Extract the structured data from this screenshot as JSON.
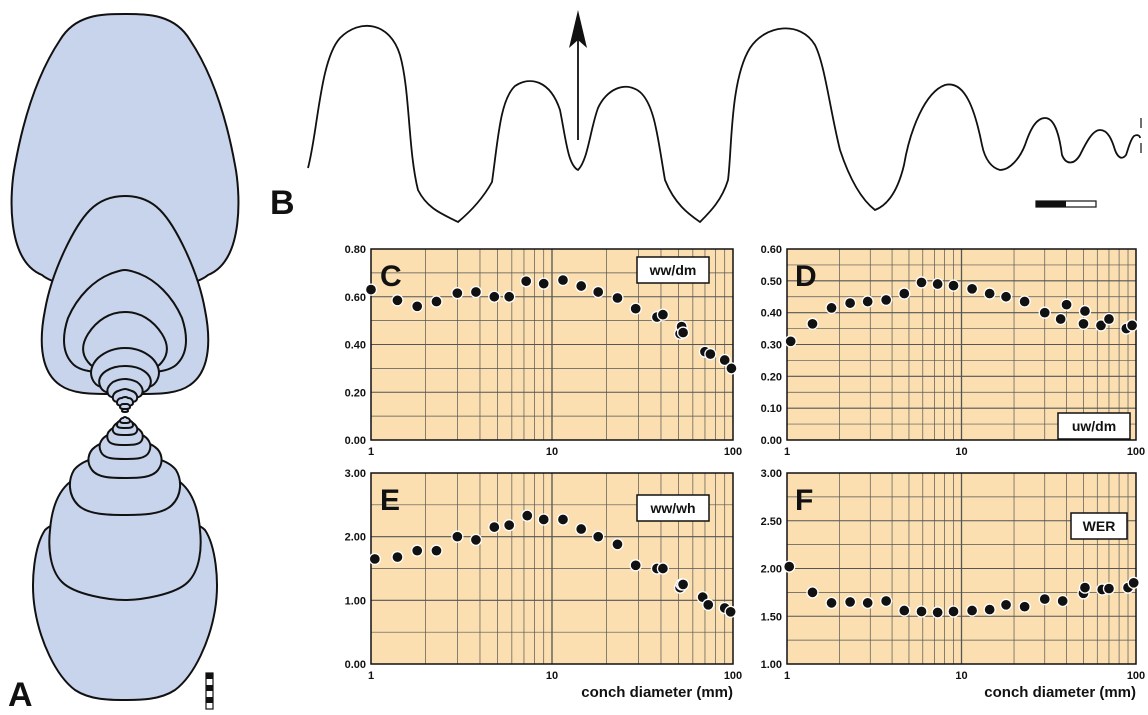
{
  "panel_labels": {
    "a": "A",
    "b": "B"
  },
  "colors": {
    "whorl_fill": "#c8d4ec",
    "plot_bg": "#fbdfb0",
    "grid": "#555555",
    "point": "#111111",
    "ink": "#111111"
  },
  "suture_icon": "suture-line-with-arrow",
  "scale_icon": "scale-bar",
  "chart_data": [
    {
      "id": "C",
      "panel": "C",
      "type": "scatter",
      "ratio": "ww/dm",
      "xlabel": "",
      "xscale": "log",
      "xlim": [
        1,
        100
      ],
      "xticks": [
        "1",
        "10",
        "100"
      ],
      "ylim": [
        0,
        0.8
      ],
      "yticks": [
        "0.00",
        "0.20",
        "0.40",
        "0.60",
        "0.80"
      ],
      "grid": true,
      "x": [
        1,
        1.4,
        1.8,
        2.3,
        3,
        3.8,
        4.8,
        5.8,
        7.2,
        9,
        11.5,
        14.5,
        18,
        23,
        29,
        38,
        41,
        51,
        52,
        53,
        70,
        75,
        90,
        98
      ],
      "y": [
        0.63,
        0.585,
        0.56,
        0.58,
        0.615,
        0.62,
        0.6,
        0.6,
        0.665,
        0.655,
        0.67,
        0.645,
        0.62,
        0.595,
        0.55,
        0.515,
        0.525,
        0.445,
        0.475,
        0.45,
        0.37,
        0.36,
        0.335,
        0.3
      ]
    },
    {
      "id": "D",
      "panel": "D",
      "type": "scatter",
      "ratio": "uw/dm",
      "xlabel": "",
      "xscale": "log",
      "xlim": [
        1,
        100
      ],
      "xticks": [
        "1",
        "10",
        "100"
      ],
      "ylim": [
        0,
        0.6
      ],
      "yticks": [
        "0.00",
        "0.10",
        "0.20",
        "0.30",
        "0.40",
        "0.50",
        "0.60"
      ],
      "grid": true,
      "x": [
        1.05,
        1.4,
        1.8,
        2.3,
        2.9,
        3.7,
        4.7,
        5.9,
        7.3,
        9,
        11.5,
        14.5,
        18,
        23,
        30,
        37,
        40,
        50,
        51,
        63,
        70,
        88,
        95
      ],
      "y": [
        0.31,
        0.365,
        0.415,
        0.43,
        0.435,
        0.44,
        0.46,
        0.495,
        0.49,
        0.485,
        0.475,
        0.46,
        0.45,
        0.435,
        0.4,
        0.38,
        0.425,
        0.365,
        0.405,
        0.36,
        0.38,
        0.35,
        0.36
      ]
    },
    {
      "id": "E",
      "panel": "E",
      "type": "scatter",
      "ratio": "ww/wh",
      "xlabel": "conch diameter (mm)",
      "xscale": "log",
      "xlim": [
        1,
        100
      ],
      "xticks": [
        "1",
        "10",
        "100"
      ],
      "ylim": [
        0,
        3
      ],
      "yticks": [
        "0.00",
        "1.00",
        "2.00",
        "3.00"
      ],
      "grid": true,
      "x": [
        1.05,
        1.4,
        1.8,
        2.3,
        3,
        3.8,
        4.8,
        5.8,
        7.3,
        9,
        11.5,
        14.5,
        18,
        23,
        29,
        38,
        41,
        51,
        52,
        53,
        68,
        73,
        90,
        97
      ],
      "y": [
        1.65,
        1.68,
        1.78,
        1.78,
        2.0,
        1.95,
        2.15,
        2.18,
        2.33,
        2.27,
        2.27,
        2.12,
        2.0,
        1.88,
        1.55,
        1.5,
        1.5,
        1.2,
        1.25,
        1.25,
        1.05,
        0.93,
        0.88,
        0.82
      ]
    },
    {
      "id": "F",
      "panel": "F",
      "type": "scatter",
      "ratio": "WER",
      "xlabel": "conch diameter (mm)",
      "xscale": "log",
      "xlim": [
        1,
        100
      ],
      "xticks": [
        "1",
        "10",
        "100"
      ],
      "ylim": [
        1,
        3
      ],
      "yticks": [
        "1.00",
        "1.50",
        "2.00",
        "2.50",
        "3.00"
      ],
      "grid": true,
      "x": [
        1.03,
        1.4,
        1.8,
        2.3,
        2.9,
        3.7,
        4.7,
        5.9,
        7.3,
        9,
        11.5,
        14.5,
        18,
        23,
        30,
        38,
        50,
        51,
        64,
        70,
        90,
        97
      ],
      "y": [
        2.02,
        1.75,
        1.64,
        1.65,
        1.64,
        1.66,
        1.56,
        1.55,
        1.54,
        1.55,
        1.56,
        1.57,
        1.62,
        1.6,
        1.68,
        1.66,
        1.74,
        1.8,
        1.78,
        1.79,
        1.8,
        1.85
      ]
    }
  ]
}
